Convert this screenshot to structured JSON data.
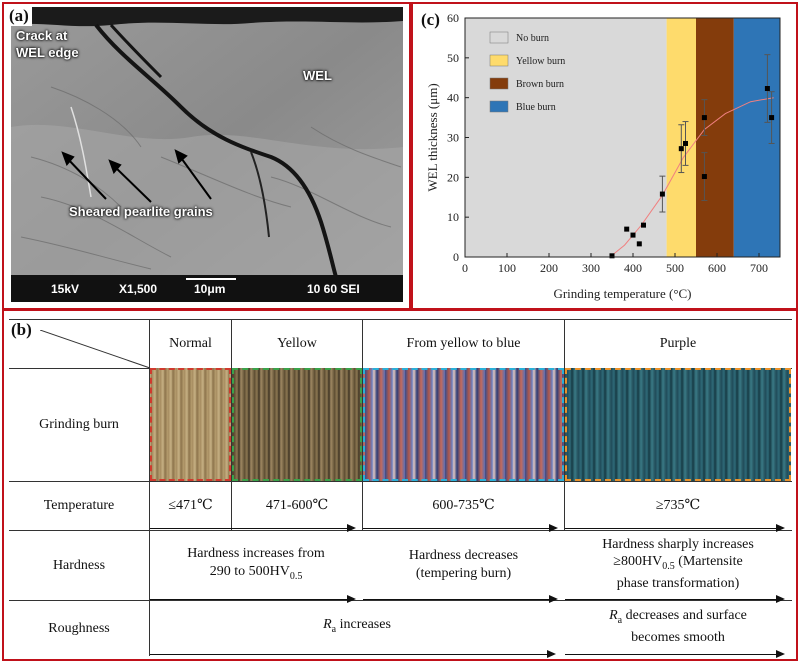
{
  "panels": {
    "a_label": "(a)",
    "b_label": "(b)",
    "c_label": "(c)"
  },
  "sem": {
    "crack_label": "Crack at\nWEL edge",
    "wel_label": "WEL",
    "sheared_label": "Sheared pearlite grains",
    "voltage": "15kV",
    "magnification": "X1,500",
    "scale": "10μm",
    "detector": "10 60 SEI"
  },
  "chart_data": {
    "type": "scatter",
    "xlabel": "Grinding temperature (°C)",
    "ylabel": "WEL thickness (μm)",
    "xlim": [
      0,
      750
    ],
    "ylim": [
      0,
      60
    ],
    "xticks": [
      "0",
      "100",
      "200",
      "300",
      "400",
      "500",
      "600",
      "700"
    ],
    "yticks": [
      "0",
      "10",
      "20",
      "30",
      "40",
      "50",
      "60"
    ],
    "regions": [
      {
        "name": "No burn",
        "from": 0,
        "to": 480,
        "color": "#d9d9d9"
      },
      {
        "name": "Yellow burn",
        "from": 480,
        "to": 550,
        "color": "#fedb6c"
      },
      {
        "name": "Brown burn",
        "from": 550,
        "to": 640,
        "color": "#843c0c"
      },
      {
        "name": "Blue burn",
        "from": 640,
        "to": 750,
        "color": "#2e75b6"
      }
    ],
    "points": [
      {
        "x": 350,
        "y": 0.3,
        "err": 0
      },
      {
        "x": 385,
        "y": 7,
        "err": 0
      },
      {
        "x": 400,
        "y": 5.5,
        "err": 0
      },
      {
        "x": 415,
        "y": 3.3,
        "err": 0
      },
      {
        "x": 425,
        "y": 8,
        "err": 0
      },
      {
        "x": 470,
        "y": 15.8,
        "err": 4.5
      },
      {
        "x": 515,
        "y": 27.2,
        "err": 6
      },
      {
        "x": 525,
        "y": 28.5,
        "err": 5.5
      },
      {
        "x": 570,
        "y": 20.2,
        "err": 6
      },
      {
        "x": 570,
        "y": 35,
        "err": 4.5
      },
      {
        "x": 720,
        "y": 42.3,
        "err": 8.5
      },
      {
        "x": 730,
        "y": 35,
        "err": 6.5
      }
    ],
    "fit": [
      [
        345,
        0
      ],
      [
        380,
        3
      ],
      [
        420,
        8
      ],
      [
        470,
        15.5
      ],
      [
        520,
        25
      ],
      [
        570,
        32
      ],
      [
        620,
        36
      ],
      [
        680,
        39
      ],
      [
        735,
        40
      ]
    ],
    "colors": {
      "points": "#000000",
      "fit": "#f08080"
    }
  },
  "table": {
    "headers": [
      "Normal",
      "Yellow",
      "From yellow to blue",
      "Purple"
    ],
    "rows": {
      "grinding_burn": "Grinding burn",
      "temperature": "Temperature",
      "hardness": "Hardness",
      "roughness": "Roughness"
    },
    "temperatures": [
      "≤471℃",
      "471-600℃",
      "600-735℃",
      "≥735℃"
    ],
    "hardness": {
      "h1_line1": "Hardness increases from",
      "h1_line2_pre": "290 to 500HV",
      "h1_line2_sub": "0.5",
      "h2_line1": "Hardness decreases",
      "h2_line2": "(tempering burn)",
      "h3_line1": "Hardness sharply increases",
      "h3_line2_pre": "≥800HV",
      "h3_line2_sub": "0.5",
      "h3_line2_post": " (Martensite",
      "h3_line3": "phase transformation)"
    },
    "roughness": {
      "r1_italic": "R",
      "r1_sub": "a",
      "r1_text": " increases",
      "r2_italic": "R",
      "r2_sub": "a",
      "r2_text": " decreases and surface",
      "r2_line2": "becomes smooth"
    },
    "thumb_colors": {
      "normal": "#d03a2e",
      "yellow": "#3aa34a",
      "blue": "#2ab0d8",
      "purple": "#e8922c"
    }
  }
}
